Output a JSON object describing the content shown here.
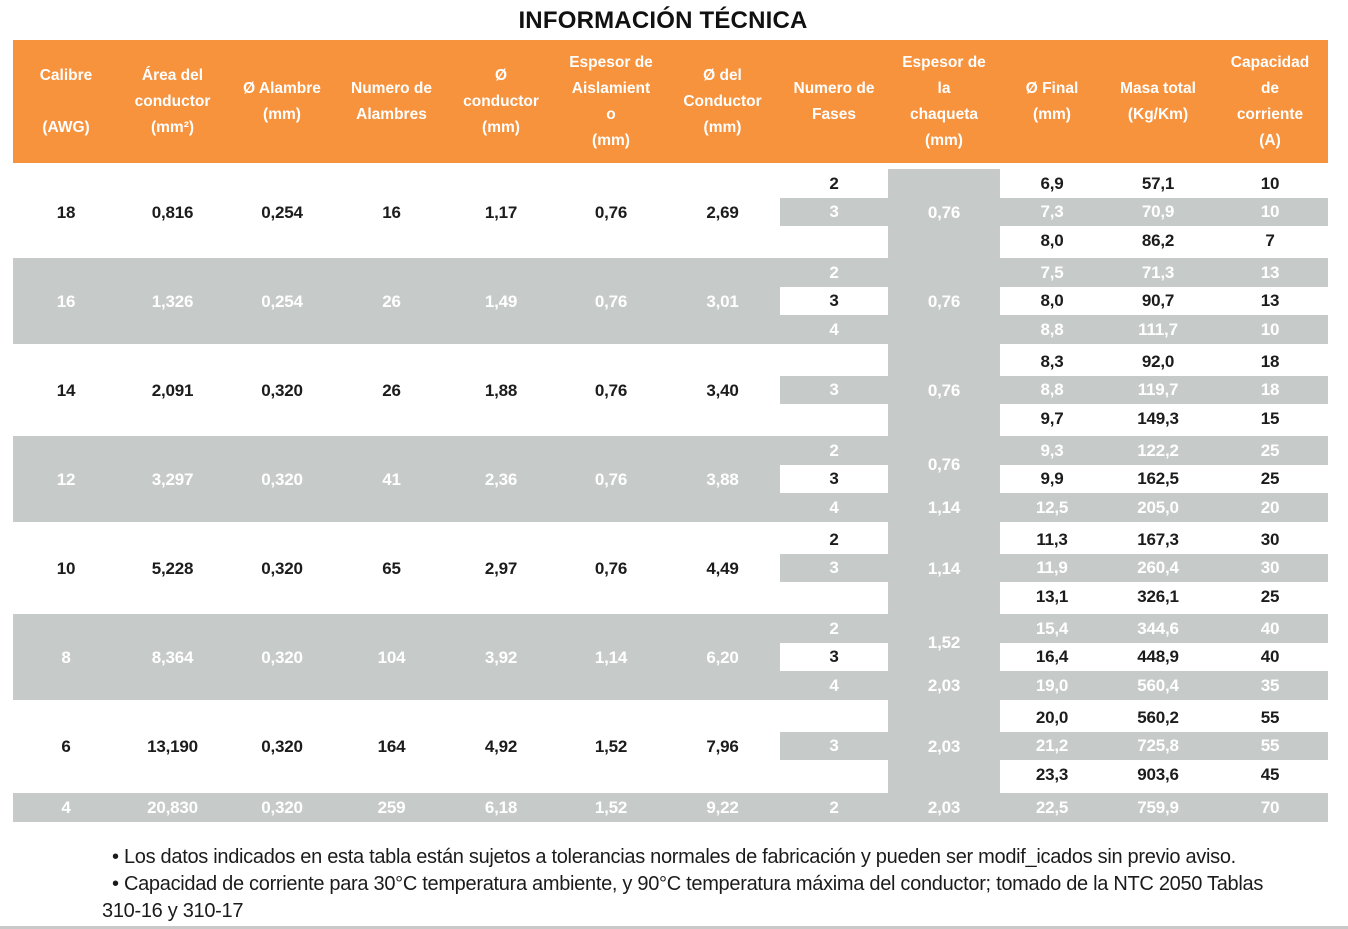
{
  "title": "INFORMACIÓN TÉCNICA",
  "colors": {
    "header_orange": "#F7923D",
    "band_gray": "#C6CAC8",
    "text_dark": "#1C1C1C",
    "text_light": "#FFFFFF",
    "bottom_rule": "#C9C9C9"
  },
  "table": {
    "columns": [
      {
        "id": "calibre",
        "label_lines": [
          "Calibre",
          " ",
          "(AWG)"
        ]
      },
      {
        "id": "area",
        "label_lines": [
          "Área del",
          "conductor",
          "(mm²)"
        ]
      },
      {
        "id": "alambre",
        "label_lines": [
          "Ø Alambre",
          "(mm)"
        ]
      },
      {
        "id": "num_alambres",
        "label_lines": [
          "Numero de",
          "Alambres"
        ]
      },
      {
        "id": "conductor",
        "label_lines": [
          "Ø",
          "conductor",
          "(mm)"
        ]
      },
      {
        "id": "aislamiento",
        "label_lines": [
          "Espesor de",
          "Aislamient",
          "o",
          "(mm)"
        ]
      },
      {
        "id": "del_conductor",
        "label_lines": [
          "Ø del",
          "Conductor",
          "(mm)"
        ]
      },
      {
        "id": "fases",
        "label_lines": [
          "Numero de",
          "Fases"
        ]
      },
      {
        "id": "chaqueta",
        "label_lines": [
          "Espesor de",
          "la",
          "chaqueta",
          "(mm)"
        ]
      },
      {
        "id": "final",
        "label_lines": [
          "Ø Final",
          "(mm)"
        ]
      },
      {
        "id": "masa",
        "label_lines": [
          "Masa total",
          "(Kg/Km)"
        ]
      },
      {
        "id": "capacidad",
        "label_lines": [
          "Capacidad",
          "de",
          "corriente",
          "(A)"
        ]
      }
    ],
    "groups": [
      {
        "calibre": "18",
        "area": "0,816",
        "alambre": "0,254",
        "num_alambres": "16",
        "conductor": "1,17",
        "aislamiento": "0,76",
        "del_conductor": "2,69",
        "shaded": false,
        "rows": [
          {
            "fases": "2",
            "final": "6,9",
            "masa": "57,1",
            "capacidad": "10"
          },
          {
            "fases": "3",
            "final": "7,3",
            "masa": "70,9",
            "capacidad": "10"
          },
          {
            "fases": "",
            "final": "8,0",
            "masa": "86,2",
            "capacidad": "7"
          }
        ],
        "chaqueta": [
          {
            "value": "0,76",
            "from": 0,
            "to": 3
          }
        ]
      },
      {
        "calibre": "16",
        "area": "1,326",
        "alambre": "0,254",
        "num_alambres": "26",
        "conductor": "1,49",
        "aislamiento": "0,76",
        "del_conductor": "3,01",
        "shaded": true,
        "rows": [
          {
            "fases": "2",
            "final": "7,5",
            "masa": "71,3",
            "capacidad": "13"
          },
          {
            "fases": "3",
            "final": "8,0",
            "masa": "90,7",
            "capacidad": "13"
          },
          {
            "fases": "4",
            "final": "8,8",
            "masa": "111,7",
            "capacidad": "10"
          }
        ],
        "chaqueta": [
          {
            "value": "0,76",
            "from": 0,
            "to": 3
          }
        ]
      },
      {
        "calibre": "14",
        "area": "2,091",
        "alambre": "0,320",
        "num_alambres": "26",
        "conductor": "1,88",
        "aislamiento": "0,76",
        "del_conductor": "3,40",
        "shaded": false,
        "rows": [
          {
            "fases": "",
            "final": "8,3",
            "masa": "92,0",
            "capacidad": "18"
          },
          {
            "fases": "3",
            "final": "8,8",
            "masa": "119,7",
            "capacidad": "18"
          },
          {
            "fases": "",
            "final": "9,7",
            "masa": "149,3",
            "capacidad": "15"
          }
        ],
        "chaqueta": [
          {
            "value": "0,76",
            "from": 0,
            "to": 3
          }
        ]
      },
      {
        "calibre": "12",
        "area": "3,297",
        "alambre": "0,320",
        "num_alambres": "41",
        "conductor": "2,36",
        "aislamiento": "0,76",
        "del_conductor": "3,88",
        "shaded": true,
        "rows": [
          {
            "fases": "2",
            "final": "9,3",
            "masa": "122,2",
            "capacidad": "25"
          },
          {
            "fases": "3",
            "final": "9,9",
            "masa": "162,5",
            "capacidad": "25"
          },
          {
            "fases": "4",
            "final": "12,5",
            "masa": "205,0",
            "capacidad": "20"
          }
        ],
        "chaqueta": [
          {
            "value": "0,76",
            "from": 0,
            "to": 2
          },
          {
            "value": "1,14",
            "from": 2,
            "to": 3
          }
        ]
      },
      {
        "calibre": "10",
        "area": "5,228",
        "alambre": "0,320",
        "num_alambres": "65",
        "conductor": "2,97",
        "aislamiento": "0,76",
        "del_conductor": "4,49",
        "shaded": false,
        "rows": [
          {
            "fases": "2",
            "final": "11,3",
            "masa": "167,3",
            "capacidad": "30"
          },
          {
            "fases": "3",
            "final": "11,9",
            "masa": "260,4",
            "capacidad": "30"
          },
          {
            "fases": "",
            "final": "13,1",
            "masa": "326,1",
            "capacidad": "25"
          }
        ],
        "chaqueta": [
          {
            "value": "1,14",
            "from": 0,
            "to": 3
          }
        ]
      },
      {
        "calibre": "8",
        "area": "8,364",
        "alambre": "0,320",
        "num_alambres": "104",
        "conductor": "3,92",
        "aislamiento": "1,14",
        "del_conductor": "6,20",
        "shaded": true,
        "rows": [
          {
            "fases": "2",
            "final": "15,4",
            "masa": "344,6",
            "capacidad": "40"
          },
          {
            "fases": "3",
            "final": "16,4",
            "masa": "448,9",
            "capacidad": "40"
          },
          {
            "fases": "4",
            "final": "19,0",
            "masa": "560,4",
            "capacidad": "35"
          }
        ],
        "chaqueta": [
          {
            "value": "1,52",
            "from": 0,
            "to": 2
          },
          {
            "value": "2,03",
            "from": 2,
            "to": 3
          }
        ]
      },
      {
        "calibre": "6",
        "area": "13,190",
        "alambre": "0,320",
        "num_alambres": "164",
        "conductor": "4,92",
        "aislamiento": "1,52",
        "del_conductor": "7,96",
        "shaded": false,
        "rows": [
          {
            "fases": "",
            "final": "20,0",
            "masa": "560,2",
            "capacidad": "55"
          },
          {
            "fases": "3",
            "final": "21,2",
            "masa": "725,8",
            "capacidad": "55"
          },
          {
            "fases": "",
            "final": "23,3",
            "masa": "903,6",
            "capacidad": "45"
          }
        ],
        "chaqueta": [
          {
            "value": "2,03",
            "from": 0,
            "to": 3
          }
        ]
      },
      {
        "calibre": "4",
        "area": "20,830",
        "alambre": "0,320",
        "num_alambres": "259",
        "conductor": "6,18",
        "aislamiento": "1,52",
        "del_conductor": "9,22",
        "shaded": true,
        "rows": [
          {
            "fases": "2",
            "final": "22,5",
            "masa": "759,9",
            "capacidad": "70"
          }
        ],
        "chaqueta": [
          {
            "value": "2,03",
            "from": 0,
            "to": 1
          }
        ]
      }
    ]
  },
  "notes": [
    "• Los datos indicados en esta tabla están sujetos a tolerancias normales de fabricación y pueden ser modif_icados sin previo aviso.",
    "• Capacidad de corriente para 30°C temperatura ambiente, y 90°C temperatura máxima del conductor; tomado de la NTC 2050 Tablas\n310-16 y 310-17"
  ]
}
